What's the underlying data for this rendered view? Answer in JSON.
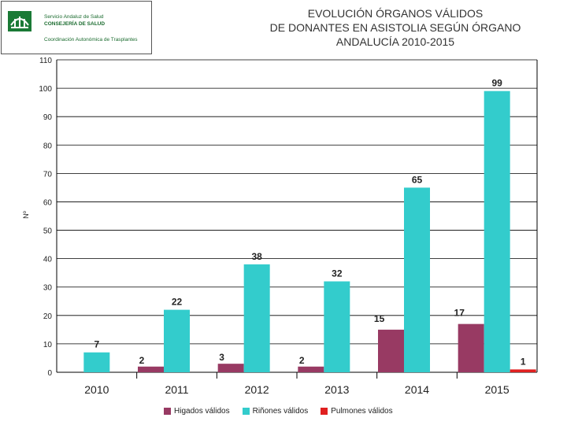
{
  "logo": {
    "line1": "Servicio Andaluz de Salud",
    "line2": "CONSEJERÍA DE SALUD",
    "line3": "Coordinación Autonómica de Trasplantes"
  },
  "chart_data": {
    "type": "bar",
    "title_lines": [
      "EVOLUCIÓN ÓRGANOS VÁLIDOS",
      "DE DONANTES EN ASISTOLIA SEGÚN ÓRGANO",
      "ANDALUCÍA 2010-2015"
    ],
    "ylabel": "Nº",
    "xlabel": "",
    "categories": [
      "2010",
      "2011",
      "2012",
      "2013",
      "2014",
      "2015"
    ],
    "ylim": [
      0,
      110
    ],
    "yticks": [
      0,
      10,
      20,
      30,
      40,
      50,
      60,
      70,
      80,
      90,
      100,
      110
    ],
    "grid": true,
    "legend_position": "bottom",
    "series": [
      {
        "name": "Higados válidos",
        "color": "#983a63",
        "values": [
          0,
          2,
          3,
          2,
          15,
          17
        ]
      },
      {
        "name": "Riñones válidos",
        "color": "#33cccc",
        "values": [
          7,
          22,
          38,
          32,
          65,
          99
        ]
      },
      {
        "name": "Pulmones válidos",
        "color": "#e02020",
        "values": [
          0,
          0,
          0,
          0,
          0,
          1
        ]
      }
    ],
    "data_labels": [
      {
        "series": 1,
        "category": 0,
        "text": "7"
      },
      {
        "series": 0,
        "category": 1,
        "text": "2"
      },
      {
        "series": 1,
        "category": 1,
        "text": "22"
      },
      {
        "series": 0,
        "category": 2,
        "text": "3"
      },
      {
        "series": 1,
        "category": 2,
        "text": "38"
      },
      {
        "series": 0,
        "category": 3,
        "text": "2"
      },
      {
        "series": 1,
        "category": 3,
        "text": "32"
      },
      {
        "series": 0,
        "category": 4,
        "text": "15"
      },
      {
        "series": 1,
        "category": 4,
        "text": "65"
      },
      {
        "series": 0,
        "category": 5,
        "text": "17"
      },
      {
        "series": 1,
        "category": 5,
        "text": "99"
      },
      {
        "series": 2,
        "category": 5,
        "text": "1"
      }
    ]
  }
}
